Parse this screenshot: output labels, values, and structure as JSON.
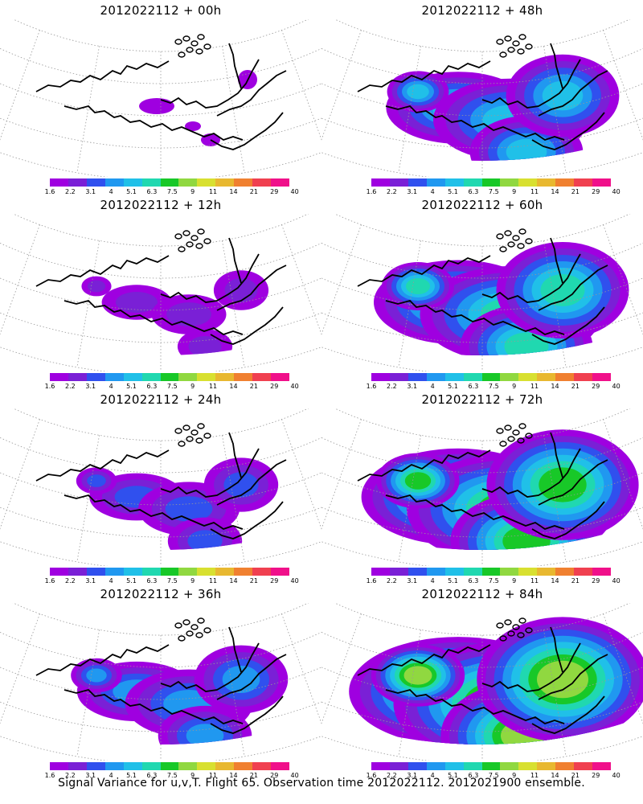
{
  "panels": [
    {
      "title": "2012022112 + 00h",
      "level": 0
    },
    {
      "title": "2012022112 + 12h",
      "level": 1
    },
    {
      "title": "2012022112 + 24h",
      "level": 2
    },
    {
      "title": "2012022112 + 36h",
      "level": 3
    },
    {
      "title": "2012022112 + 48h",
      "level": 4
    },
    {
      "title": "2012022112 + 60h",
      "level": 5
    },
    {
      "title": "2012022112 + 72h",
      "level": 6
    },
    {
      "title": "2012022112 + 84h",
      "level": 7
    }
  ],
  "colorbar": {
    "labels": [
      "1.6",
      "2.2",
      "3.1",
      "4",
      "5.1",
      "6.3",
      "7.5",
      "9",
      "11",
      "14",
      "21",
      "29",
      "40"
    ],
    "colors": [
      "#9f00e0",
      "#7a20d6",
      "#3050ee",
      "#2098f0",
      "#20c0e8",
      "#20d8b0",
      "#18c828",
      "#90d840",
      "#d8e030",
      "#e8b830",
      "#f08030",
      "#f04050",
      "#f0108a"
    ]
  },
  "footer": "Signal Variance for u,v,T. Flight 65. Observation time 2012022112. 2012021900 ensemble."
}
